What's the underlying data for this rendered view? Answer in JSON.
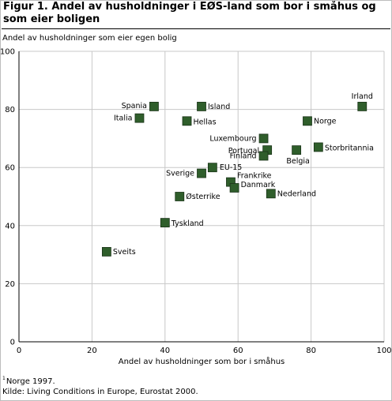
{
  "title": "Figur 1. Andel av husholdninger i EØS-land som bor i småhus og som eier boligen",
  "note_mark": "1",
  "note_text": "Norge 1997.",
  "source": "Kilde: Living Conditions in Europe, Eurostat 2000.",
  "colors": {
    "marker_fill": "#2f5e2b",
    "marker_stroke": "#1a3318",
    "grid": "#c8c8c8",
    "axis": "#000000"
  },
  "chart_data": {
    "type": "scatter",
    "title": "Figur 1. Andel av husholdninger i EØS-land som bor i småhus og som eier boligen",
    "xlabel": "Andel av husholdninger som bor i småhus",
    "ylabel": "Andel av husholdninger som eier egen bolig",
    "xlim": [
      0,
      100
    ],
    "ylim": [
      0,
      100
    ],
    "xticks": [
      0,
      20,
      40,
      60,
      80,
      100
    ],
    "yticks": [
      0,
      20,
      40,
      60,
      80,
      100
    ],
    "grid": true,
    "points": [
      {
        "label": "Spania",
        "x": 37,
        "y": 81
      },
      {
        "label": "Island",
        "x": 50,
        "y": 81
      },
      {
        "label": "Irland",
        "x": 94,
        "y": 81
      },
      {
        "label": "Italia",
        "x": 33,
        "y": 77
      },
      {
        "label": "Hellas",
        "x": 46,
        "y": 76
      },
      {
        "label": "Norge",
        "x": 79,
        "y": 76
      },
      {
        "label": "Luxembourg",
        "x": 67,
        "y": 70
      },
      {
        "label": "Portugal",
        "x": 68,
        "y": 66
      },
      {
        "label": "Belgia",
        "x": 76,
        "y": 66
      },
      {
        "label": "Storbritannia",
        "x": 82,
        "y": 67
      },
      {
        "label": "Finland",
        "x": 67,
        "y": 64
      },
      {
        "label": "EU-15",
        "x": 53,
        "y": 60
      },
      {
        "label": "Sverige",
        "x": 50,
        "y": 58
      },
      {
        "label": "Frankrike",
        "x": 58,
        "y": 55
      },
      {
        "label": "Danmark",
        "x": 59,
        "y": 53
      },
      {
        "label": "Nederland",
        "x": 69,
        "y": 51
      },
      {
        "label": "Østerrike",
        "x": 44,
        "y": 50
      },
      {
        "label": "Tyskland",
        "x": 40,
        "y": 41
      },
      {
        "label": "Sveits",
        "x": 24,
        "y": 31
      }
    ]
  }
}
